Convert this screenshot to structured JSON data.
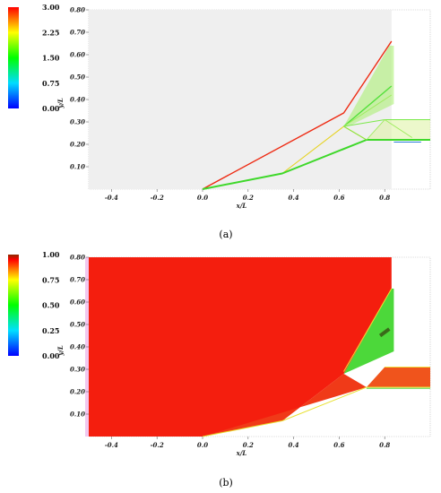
{
  "chart_data": [
    {
      "type": "heatmap",
      "caption": "(a)",
      "xlabel": "x/L",
      "ylabel": "y/L",
      "x_ticks": [
        "-0.4",
        "-0.2",
        "0.0",
        "0.2",
        "0.4",
        "0.6",
        "0.8"
      ],
      "x_tick_values": [
        -0.4,
        -0.2,
        0.0,
        0.2,
        0.4,
        0.6,
        0.8
      ],
      "y_ticks": [
        "0.10",
        "0.20",
        "0.30",
        "0.40",
        "0.50",
        "0.60",
        "0.70",
        "0.80"
      ],
      "y_tick_values": [
        0.1,
        0.2,
        0.3,
        0.4,
        0.5,
        0.6,
        0.7,
        0.8
      ],
      "xlim": [
        -0.5,
        1.0
      ],
      "ylim": [
        0.0,
        0.8
      ],
      "colorbar": {
        "ticks": [
          "3.00",
          "2.25",
          "1.50",
          "0.75",
          "0.00"
        ],
        "range": [
          0.0,
          3.0
        ]
      },
      "background_color": "#efefef",
      "lines": [
        {
          "name": "red-front",
          "color": "#ee2a12",
          "width": 1.4,
          "points": [
            [
              0.0,
              0.0
            ],
            [
              0.62,
              0.34
            ],
            [
              0.83,
              0.66
            ]
          ]
        },
        {
          "name": "yellow-front",
          "color": "#e6d21e",
          "width": 1.1,
          "points": [
            [
              0.0,
              0.0
            ],
            [
              0.35,
              0.07
            ],
            [
              0.62,
              0.28
            ],
            [
              0.72,
              0.22
            ]
          ]
        },
        {
          "name": "green-lower",
          "color": "#3ed82a",
          "width": 2.0,
          "points": [
            [
              0.0,
              0.0
            ],
            [
              0.35,
              0.07
            ],
            [
              0.72,
              0.22
            ],
            [
              1.0,
              0.22
            ]
          ]
        },
        {
          "name": "green-mid",
          "color": "#52e03a",
          "width": 1.4,
          "points": [
            [
              0.62,
              0.28
            ],
            [
              0.83,
              0.46
            ]
          ]
        },
        {
          "name": "green-fan-a",
          "color": "#7be84a",
          "width": 1.0,
          "points": [
            [
              0.62,
              0.28
            ],
            [
              0.72,
              0.22
            ]
          ]
        },
        {
          "name": "green-fan-b",
          "color": "#7be84a",
          "width": 1.0,
          "points": [
            [
              0.62,
              0.28
            ],
            [
              0.8,
              0.31
            ],
            [
              1.0,
              0.31
            ]
          ]
        },
        {
          "name": "green-fan-c",
          "color": "#9cec5a",
          "width": 0.9,
          "points": [
            [
              0.62,
              0.28
            ],
            [
              0.83,
              0.42
            ]
          ]
        },
        {
          "name": "green-fan-d",
          "color": "#9cec5a",
          "width": 0.9,
          "points": [
            [
              0.72,
              0.22
            ],
            [
              0.8,
              0.31
            ]
          ]
        },
        {
          "name": "green-fan-e",
          "color": "#9cec5a",
          "width": 0.9,
          "points": [
            [
              0.8,
              0.31
            ],
            [
              0.92,
              0.23
            ]
          ]
        },
        {
          "name": "blue-bottom",
          "color": "#2a7ad8",
          "width": 1.0,
          "points": [
            [
              0.84,
              0.21
            ],
            [
              0.96,
              0.21
            ]
          ]
        }
      ],
      "bands": [
        {
          "name": "cone-band",
          "color": "#a6ee6a",
          "points": [
            [
              0.62,
              0.28
            ],
            [
              0.82,
              0.64
            ],
            [
              0.84,
              0.64
            ],
            [
              0.84,
              0.38
            ],
            [
              0.66,
              0.29
            ]
          ]
        },
        {
          "name": "duct-band",
          "color": "#ddf2a0",
          "points": [
            [
              0.72,
              0.22
            ],
            [
              0.8,
              0.31
            ],
            [
              1.0,
              0.31
            ],
            [
              1.0,
              0.22
            ]
          ]
        }
      ]
    },
    {
      "type": "heatmap",
      "caption": "(b)",
      "xlabel": "x/L",
      "ylabel": "y/L",
      "x_ticks": [
        "-0.4",
        "-0.2",
        "0.0",
        "0.2",
        "0.4",
        "0.6",
        "0.8"
      ],
      "x_tick_values": [
        -0.4,
        -0.2,
        0.0,
        0.2,
        0.4,
        0.6,
        0.8
      ],
      "y_ticks": [
        "0.10",
        "0.20",
        "0.30",
        "0.40",
        "0.50",
        "0.60",
        "0.70",
        "0.80"
      ],
      "y_tick_values": [
        0.1,
        0.2,
        0.3,
        0.4,
        0.5,
        0.6,
        0.7,
        0.8
      ],
      "xlim": [
        -0.5,
        1.0
      ],
      "ylim": [
        0.0,
        0.8
      ],
      "colorbar": {
        "ticks": [
          "1.00",
          "0.75",
          "0.50",
          "0.25",
          "0.00"
        ],
        "range": [
          0.0,
          1.0
        ]
      },
      "regions": [
        {
          "name": "main-red-region",
          "color": "#f41e0e",
          "points": [
            [
              -0.5,
              0.0
            ],
            [
              -0.5,
              0.8
            ],
            [
              0.83,
              0.8
            ],
            [
              0.83,
              0.66
            ],
            [
              0.62,
              0.28
            ],
            [
              0.35,
              0.07
            ],
            [
              0.0,
              0.0
            ]
          ]
        },
        {
          "name": "cone-green-region",
          "color": "#4cd83a",
          "points": [
            [
              0.62,
              0.28
            ],
            [
              0.83,
              0.66
            ],
            [
              0.84,
              0.66
            ],
            [
              0.84,
              0.38
            ]
          ]
        },
        {
          "name": "lower-red-wedge",
          "color": "#f03a18",
          "points": [
            [
              0.0,
              0.0
            ],
            [
              0.35,
              0.07
            ],
            [
              0.62,
              0.28
            ],
            [
              0.72,
              0.22
            ]
          ]
        },
        {
          "name": "duct-orange-region",
          "color": "#f0541c",
          "points": [
            [
              0.72,
              0.22
            ],
            [
              0.8,
              0.31
            ],
            [
              1.0,
              0.31
            ],
            [
              1.0,
              0.22
            ]
          ]
        }
      ],
      "lines": [
        {
          "name": "yellow-edge-lower",
          "color": "#e8e030",
          "width": 1.0,
          "points": [
            [
              0.0,
              0.0
            ],
            [
              0.35,
              0.07
            ],
            [
              0.72,
              0.22
            ],
            [
              1.0,
              0.22
            ]
          ]
        },
        {
          "name": "green-edge-lower",
          "color": "#58d848",
          "width": 1.0,
          "points": [
            [
              0.72,
              0.215
            ],
            [
              1.0,
              0.215
            ]
          ]
        },
        {
          "name": "yellow-edge-upper",
          "color": "#f0dc30",
          "width": 1.0,
          "points": [
            [
              0.62,
              0.29
            ],
            [
              0.83,
              0.66
            ]
          ]
        },
        {
          "name": "yellow-duct-top",
          "color": "#f0e040",
          "width": 1.0,
          "points": [
            [
              0.8,
              0.31
            ],
            [
              1.0,
              0.31
            ]
          ]
        },
        {
          "name": "dark-cells",
          "color": "#3a6a1a",
          "width": 4.0,
          "points": [
            [
              0.78,
              0.45
            ],
            [
              0.82,
              0.48
            ]
          ]
        }
      ]
    }
  ]
}
